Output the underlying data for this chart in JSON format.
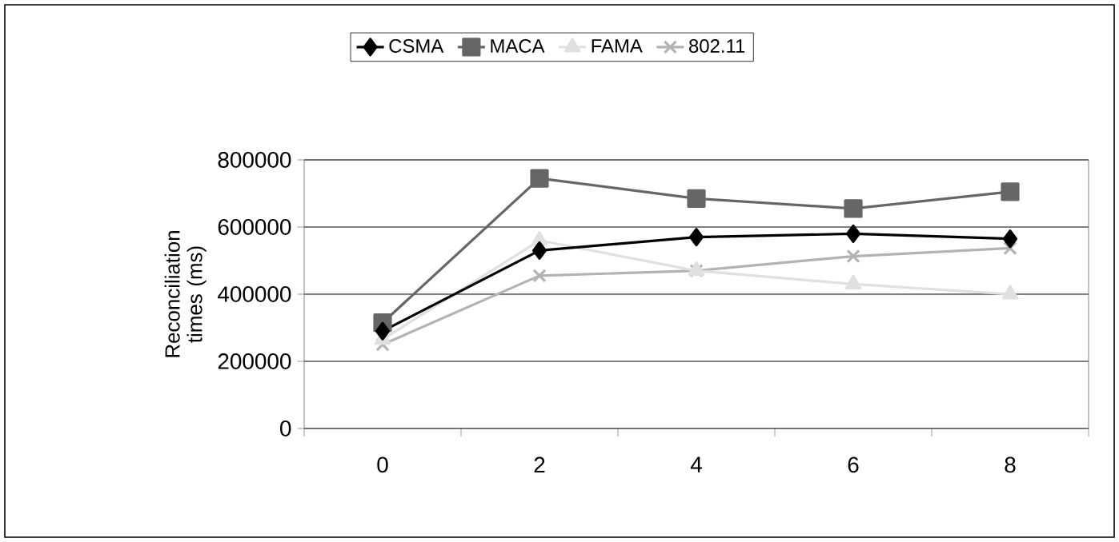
{
  "chart_data": {
    "type": "line",
    "ylabel": "Reconciliation times (ms)",
    "categories": [
      "0",
      "2",
      "4",
      "6",
      "8"
    ],
    "ylim": [
      0,
      800000
    ],
    "yticks": [
      0,
      200000,
      400000,
      600000,
      800000
    ],
    "grid": "y",
    "legend": "top",
    "line_style": "solid",
    "series": [
      {
        "name": "CSMA",
        "color": "#000000",
        "marker": "diamond",
        "values": [
          290000,
          530000,
          570000,
          580000,
          565000
        ]
      },
      {
        "name": "MACA",
        "color": "#666666",
        "marker": "square",
        "values": [
          315000,
          745000,
          685000,
          655000,
          705000
        ]
      },
      {
        "name": "FAMA",
        "color": "#e0e0e0",
        "marker": "triangle",
        "values": [
          265000,
          560000,
          470000,
          430000,
          400000
        ]
      },
      {
        "name": "802.11",
        "color": "#b3b3b3",
        "marker": "cross",
        "values": [
          250000,
          455000,
          470000,
          513000,
          537000
        ]
      }
    ]
  }
}
